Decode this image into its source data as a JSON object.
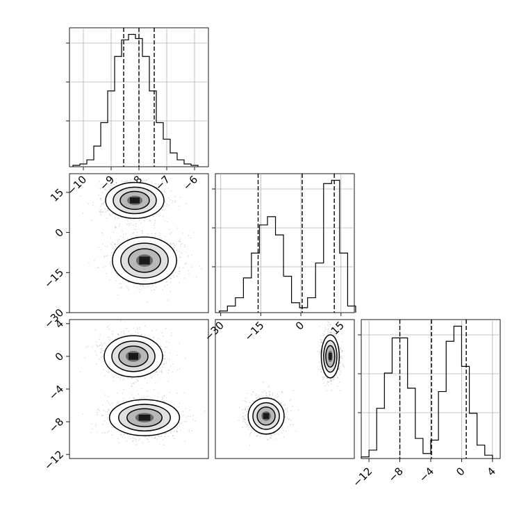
{
  "chart_data": [
    {
      "type": "histogram",
      "panel": "hist-p0",
      "xlim": [
        -10.5,
        -5.5
      ],
      "bins": [
        -10.25,
        -10.0,
        -9.75,
        -9.5,
        -9.25,
        -9.0,
        -8.75,
        -8.5,
        -8.25,
        -8.0,
        -7.75,
        -7.5,
        -7.25,
        -7.0,
        -6.75,
        -6.5,
        -6.25,
        -6.0
      ],
      "counts": [
        1,
        2,
        5,
        15,
        32,
        55,
        80,
        92,
        96,
        93,
        80,
        55,
        32,
        20,
        10,
        5,
        2,
        1
      ],
      "quantiles": [
        -8.55,
        -8.0,
        -7.45
      ],
      "x_ticks": [
        -10,
        -9,
        -8,
        -7,
        -6
      ],
      "x_tick_labels": [
        "−10",
        "−9",
        "−8",
        "−7",
        "−6"
      ]
    },
    {
      "type": "histogram",
      "panel": "hist-p1",
      "xlim": [
        -32,
        20
      ],
      "bins": [
        -29,
        -26,
        -23,
        -20,
        -17,
        -14,
        -11,
        -8,
        -5,
        -2,
        1,
        4,
        7,
        10,
        13,
        16,
        19
      ],
      "counts": [
        1,
        4,
        9,
        21,
        36,
        53,
        58,
        47,
        22,
        6,
        3,
        9,
        30,
        78,
        80,
        36,
        4
      ],
      "quantiles": [
        -16.0,
        0.5,
        12.5
      ],
      "x_ticks": [
        -30,
        -15,
        0,
        15
      ],
      "x_tick_labels": [
        "−30",
        "−15",
        "0",
        "15"
      ]
    },
    {
      "type": "histogram",
      "panel": "hist-p2",
      "xlim": [
        -13,
        5
      ],
      "bins": [
        -12.5,
        -11.5,
        -10.5,
        -9.5,
        -8.5,
        -7.5,
        -6.5,
        -5.5,
        -4.5,
        -3.5,
        -2.5,
        -1.5,
        -0.5,
        0.5,
        1.5,
        2.5,
        3.5
      ],
      "counts": [
        1,
        5,
        30,
        51,
        72,
        72,
        42,
        12,
        3,
        11,
        40,
        70,
        79,
        55,
        27,
        8,
        2
      ],
      "quantiles": [
        -8.0,
        -3.9,
        0.6
      ],
      "x_ticks": [
        -12,
        -8,
        -4,
        0,
        4
      ],
      "x_tick_labels": [
        "−12",
        "−8",
        "−4",
        "0",
        "4"
      ]
    },
    {
      "type": "contour",
      "panel": "corr-p1-p0",
      "xlim": [
        -10.5,
        -5.5
      ],
      "ylim": [
        -30,
        22
      ],
      "blobs": [
        {
          "cx": -8.15,
          "cy": 12,
          "sx": 0.5,
          "sy": 3.2
        },
        {
          "cx": -7.8,
          "cy": -10.5,
          "sx": 0.55,
          "sy": 4.2
        }
      ],
      "y_ticks": [
        15,
        0,
        -15,
        -30
      ],
      "y_tick_labels": [
        "15",
        "0",
        "−15",
        "−30"
      ]
    },
    {
      "type": "contour",
      "panel": "corr-p2-p0",
      "xlim": [
        -10.5,
        -5.5
      ],
      "ylim": [
        -12.5,
        4.5
      ],
      "blobs": [
        {
          "cx": -8.2,
          "cy": 0,
          "sx": 0.5,
          "sy": 1.2
        },
        {
          "cx": -7.8,
          "cy": -7.5,
          "sx": 0.6,
          "sy": 1.05
        }
      ],
      "y_ticks": [
        4,
        0,
        -4,
        -8,
        -12
      ],
      "y_tick_labels": [
        "4",
        "0",
        "−4",
        "−8",
        "−12"
      ]
    },
    {
      "type": "contour",
      "panel": "corr-p2-p1",
      "xlim": [
        -32,
        20
      ],
      "ylim": [
        -12.5,
        4.5
      ],
      "blobs": [
        {
          "cx": 11,
          "cy": 0,
          "sx": 1.6,
          "sy": 1.25
        },
        {
          "cx": -13,
          "cy": -7.3,
          "sx": 3.2,
          "sy": 1.05
        }
      ]
    }
  ]
}
